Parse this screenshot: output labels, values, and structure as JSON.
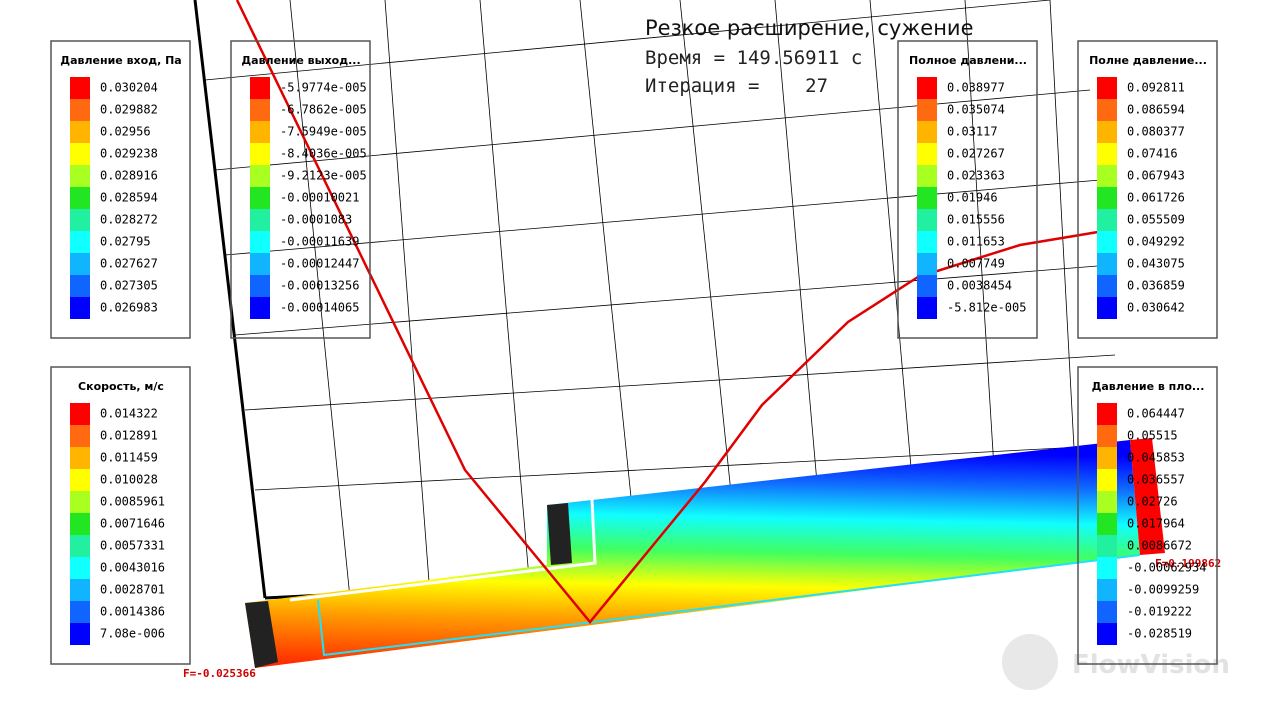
{
  "header": {
    "title": "Резкое расширение, сужение",
    "time": "Время = 149.56911 с",
    "iteration": "Итерация =    27"
  },
  "palette": [
    "#ff0000",
    "#ff6a10",
    "#ffb400",
    "#ffff00",
    "#a8ff20",
    "#22e622",
    "#20f0a0",
    "#10ffff",
    "#10b4ff",
    "#1064ff",
    "#0000ff"
  ],
  "legends": [
    {
      "title": "Давление вход, Па",
      "labels": [
        "0.030204",
        "0.029882",
        "0.02956",
        "0.029238",
        "0.028916",
        "0.028594",
        "0.028272",
        "0.02795",
        "0.027627",
        "0.027305",
        "0.026983"
      ]
    },
    {
      "title": "Давление выход...",
      "labels": [
        "-5.9774e-005",
        "-6.7862e-005",
        "-7.5949e-005",
        "-8.4036e-005",
        "-9.2123e-005",
        "-0.00010021",
        "-0.0001083",
        "-0.00011639",
        "-0.00012447",
        "-0.00013256",
        "-0.00014065"
      ]
    },
    {
      "title": "Полное давлени...",
      "labels": [
        "0.038977",
        "0.035074",
        "0.03117",
        "0.027267",
        "0.023363",
        "0.01946",
        "0.015556",
        "0.011653",
        "0.007749",
        "0.0038454",
        "-5.812e-005"
      ]
    },
    {
      "title": "Полне давление...",
      "labels": [
        "0.092811",
        "0.086594",
        "0.080377",
        "0.07416",
        "0.067943",
        "0.061726",
        "0.055509",
        "0.049292",
        "0.043075",
        "0.036859",
        "0.030642"
      ]
    },
    {
      "title": "Скорость, м/с",
      "labels": [
        "0.014322",
        "0.012891",
        "0.011459",
        "0.010028",
        "0.0085961",
        "0.0071646",
        "0.0057331",
        "0.0043016",
        "0.0028701",
        "0.0014386",
        "7.08e-006"
      ]
    },
    {
      "title": "Давление в пло...",
      "labels": [
        "0.064447",
        "0.05515",
        "0.045853",
        "0.036557",
        "0.02726",
        "0.017964",
        "0.0086672",
        "-0.00062934",
        "-0.0099259",
        "-0.019222",
        "-0.028519"
      ]
    }
  ],
  "annotations": {
    "force_left": "F=-0.025366",
    "force_right": "F=0.199862"
  },
  "watermark": "FlowVision"
}
